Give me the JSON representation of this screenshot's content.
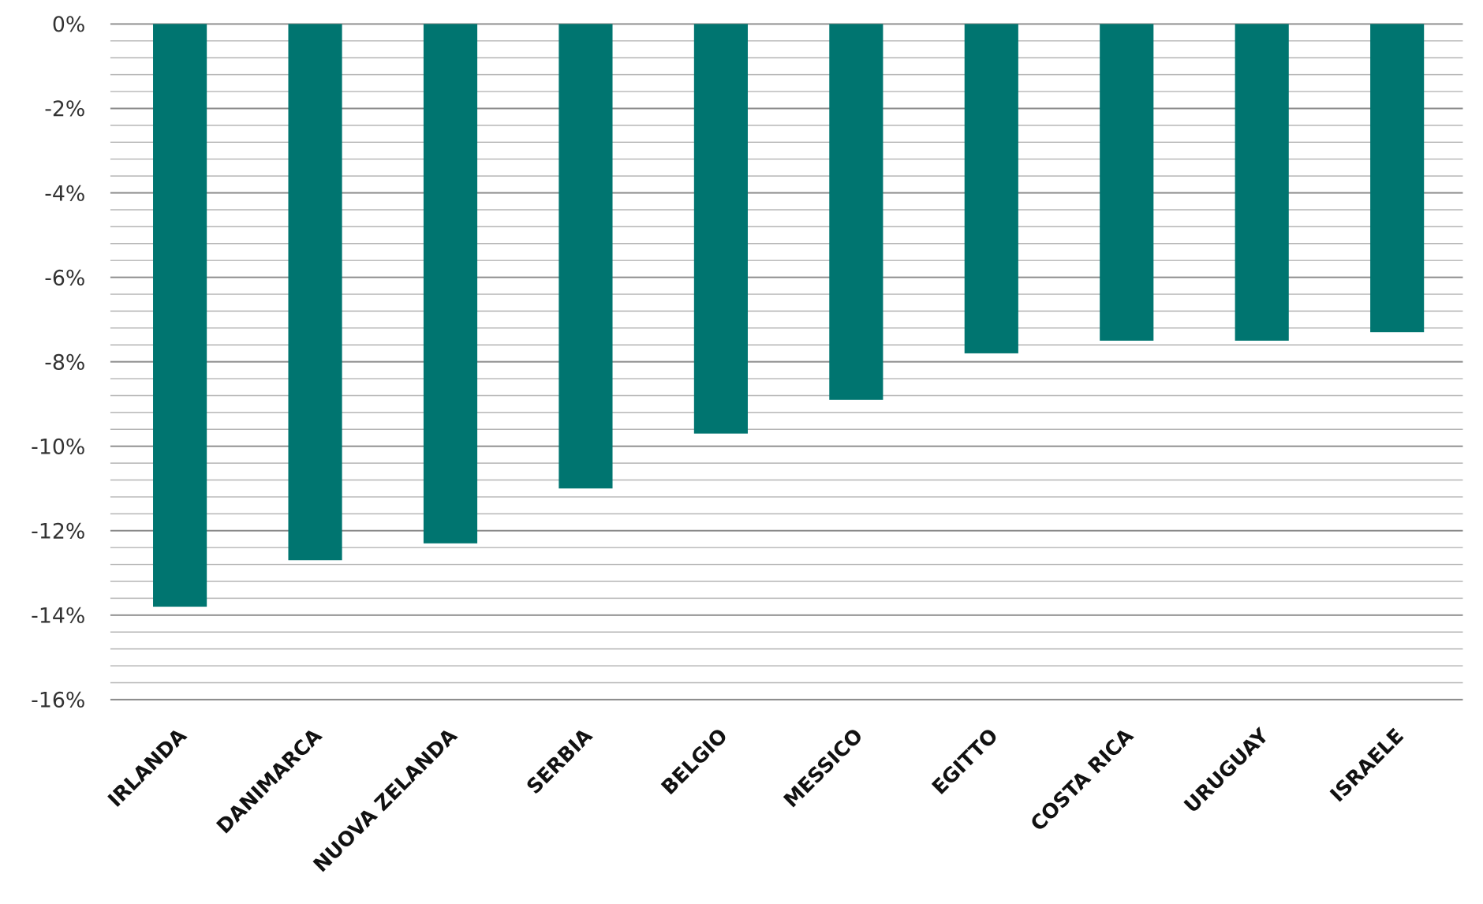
{
  "chart_data": {
    "type": "bar",
    "title": "",
    "xlabel": "",
    "ylabel": "",
    "categories": [
      "IRLANDA",
      "DANIMARCA",
      "NUOVA ZELANDA",
      "SERBIA",
      "BELGIO",
      "MESSICO",
      "EGITTO",
      "COSTA RICA",
      "URUGUAY",
      "ISRAELE"
    ],
    "values": [
      -13.8,
      -12.7,
      -12.3,
      -11.0,
      -9.7,
      -8.9,
      -7.8,
      -7.5,
      -7.5,
      -7.3
    ],
    "ylim": [
      -16,
      0
    ],
    "yticks": [
      0,
      -2,
      -4,
      -6,
      -8,
      -10,
      -12,
      -14,
      -16
    ],
    "ytick_labels": [
      "0%",
      "-2%",
      "-4%",
      "-6%",
      "-8%",
      "-10%",
      "-12%",
      "-14%",
      "-16%"
    ],
    "grid": true,
    "minor_grid_step": 0.4,
    "bar_color": "#007570",
    "legend": "none"
  }
}
